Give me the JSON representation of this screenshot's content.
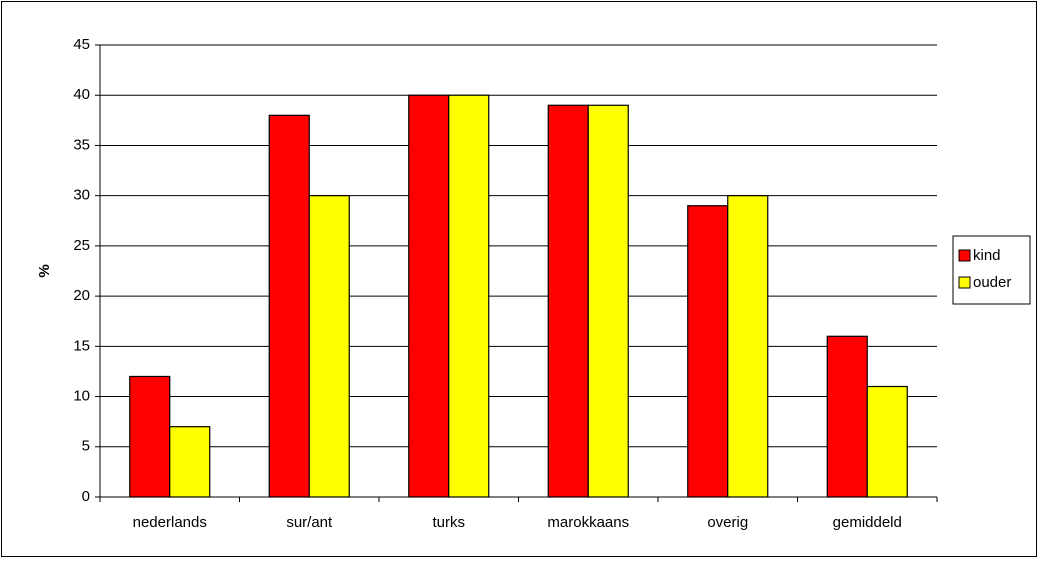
{
  "chart_data": {
    "type": "bar",
    "y_label": "%",
    "categories": [
      "nederlands",
      "sur/ant",
      "turks",
      "marokkaans",
      "overig",
      "gemiddeld"
    ],
    "series": [
      {
        "name": "kind",
        "color": "#ff0000",
        "values": [
          12,
          38,
          40,
          39,
          29,
          16
        ]
      },
      {
        "name": "ouder",
        "color": "#ffff00",
        "values": [
          7,
          30,
          40,
          39,
          30,
          11
        ]
      }
    ],
    "ylim": [
      0,
      45
    ],
    "yticks": [
      0,
      5,
      10,
      15,
      20,
      25,
      30,
      35,
      40,
      45
    ],
    "grid": true,
    "legend": "right"
  }
}
